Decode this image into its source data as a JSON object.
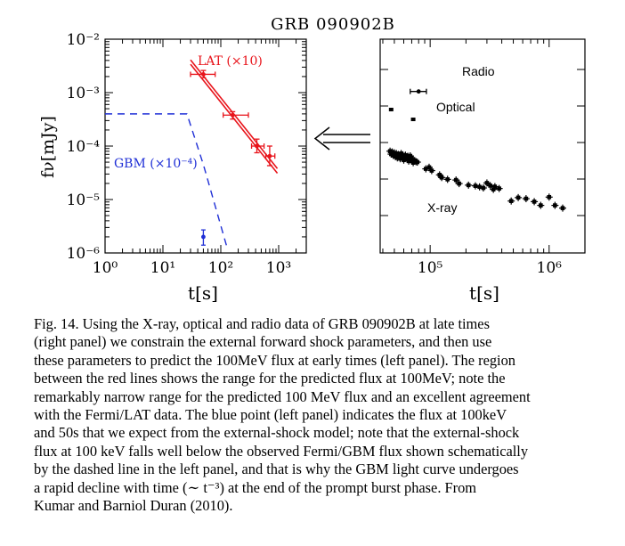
{
  "figure": {
    "title": "GRB 090902B",
    "colors": {
      "red": "#e8141b",
      "blue": "#1f2fd6",
      "black": "#000000"
    },
    "arrow_icon": "double-arrow-left"
  },
  "chart_data": [
    {
      "type": "scatter",
      "panel": "left",
      "xlabel": "t[s]",
      "ylabel": "fν[mJy]",
      "xscale": "log",
      "yscale": "log",
      "xlim": [
        1,
        3000
      ],
      "ylim": [
        1e-06,
        0.01
      ],
      "xticklabels": [
        "10⁰",
        "10¹",
        "10²",
        "10³"
      ],
      "yticklabels": [
        "10⁻⁶",
        "10⁻⁵",
        "10⁻⁴",
        "10⁻³",
        "10⁻²"
      ],
      "annotations": {
        "lat": "LAT (×10)",
        "gbm": "GBM (×10⁻⁴)"
      },
      "series": [
        {
          "name": "LAT (×10)",
          "color": "#e8141b",
          "points": [
            {
              "x": 50,
              "y": 0.0022,
              "xerr": [
                30,
                80
              ],
              "yerr": [
                0.0019,
                0.0026
              ]
            },
            {
              "x": 160,
              "y": 0.00038,
              "xerr": [
                110,
                300
              ],
              "yerr": [
                0.00032,
                0.00044
              ]
            },
            {
              "x": 420,
              "y": 0.0001,
              "xerr": [
                340,
                560
              ],
              "yerr": [
                7.5e-05,
                0.000135
              ]
            },
            {
              "x": 700,
              "y": 6.5e-05,
              "xerr": [
                600,
                860
              ],
              "yerr": [
                4.3e-05,
                0.0001
              ]
            }
          ],
          "prediction_band": [
            {
              "x": [
                30,
                950
              ],
              "y": [
                0.0041,
                3.8e-05
              ]
            },
            {
              "x": [
                30,
                950
              ],
              "y": [
                0.0034,
                3.1e-05
              ]
            }
          ]
        },
        {
          "name": "GBM (×10⁻⁴)",
          "color": "#1f2fd6",
          "style": "dashed",
          "x": [
            1,
            26,
            50,
            130
          ],
          "y": [
            0.0004,
            0.0004,
            4.5e-05,
            1.2e-06
          ]
        },
        {
          "name": "external shock 100keV",
          "color": "#1f2fd6",
          "points": [
            {
              "x": 50,
              "y": 2e-06,
              "yerr": [
                1.4e-06,
                2.7e-06
              ]
            }
          ]
        }
      ]
    },
    {
      "type": "scatter",
      "panel": "right",
      "xlabel": "t[s]",
      "xscale": "log",
      "yscale": "log",
      "xlim": [
        38000,
        2000000
      ],
      "xticklabels": [
        "10⁵",
        "10⁶"
      ],
      "annotations": {
        "radio": "Radio",
        "optical": "Optical",
        "xray": "X-ray"
      },
      "series": [
        {
          "name": "Radio",
          "points": [
            {
              "x": 80000,
              "y": 2.5,
              "xerr": [
                68000,
                93000
              ]
            }
          ]
        },
        {
          "name": "Optical",
          "points": [
            {
              "x": 47000,
              "y": 0.8
            },
            {
              "x": 72000,
              "y": 0.43
            }
          ]
        },
        {
          "name": "X-ray",
          "x": [
            46000,
            47000,
            48000,
            49000,
            50000,
            51000,
            52000,
            53000,
            54000,
            55000,
            56000,
            57000,
            58000,
            59000,
            60000,
            61000,
            62000,
            63000,
            64000,
            65000,
            66000,
            67000,
            68000,
            69000,
            70000,
            72000,
            74000,
            76000,
            78000,
            92000,
            98000,
            103000,
            120000,
            125000,
            140000,
            165000,
            175000,
            210000,
            240000,
            260000,
            280000,
            300000,
            320000,
            340000,
            350000,
            380000,
            480000,
            550000,
            640000,
            750000,
            850000,
            1000000,
            1120000,
            1300000
          ],
          "y": [
            0.058,
            0.048,
            0.055,
            0.044,
            0.052,
            0.041,
            0.05,
            0.038,
            0.047,
            0.044,
            0.036,
            0.05,
            0.042,
            0.046,
            0.033,
            0.04,
            0.045,
            0.038,
            0.035,
            0.042,
            0.031,
            0.039,
            0.043,
            0.034,
            0.038,
            0.028,
            0.032,
            0.03,
            0.029,
            0.019,
            0.021,
            0.017,
            0.013,
            0.011,
            0.0098,
            0.0094,
            0.0075,
            0.0068,
            0.0065,
            0.0061,
            0.0057,
            0.0078,
            0.0066,
            0.0052,
            0.0062,
            0.0055,
            0.0025,
            0.0031,
            0.0029,
            0.0024,
            0.0019,
            0.0032,
            0.0019,
            0.0016
          ]
        }
      ]
    }
  ],
  "caption": {
    "lines": [
      "Fig. 14. Using the X-ray, optical and radio data of GRB 090902B at late times",
      "(right panel) we constrain the external forward shock parameters, and then use",
      "these parameters to predict the 100MeV flux at early times (left panel). The region",
      "between the red lines shows the range for the predicted flux at 100MeV; note the",
      "remarkably narrow range for the predicted 100 MeV flux and an excellent agreement",
      "with the Fermi/LAT data. The blue point (left panel) indicates the flux at 100keV",
      "and 50s that we expect from the external-shock model; note that the external-shock",
      "flux at 100 keV falls well below the observed Fermi/GBM flux shown schematically",
      "by the dashed line in the left panel, and that is why the GBM light curve undergoes",
      "a rapid decline with time (∼ t⁻³) at the end of the prompt burst phase. From",
      "Kumar and Barniol Duran (2010)."
    ]
  }
}
